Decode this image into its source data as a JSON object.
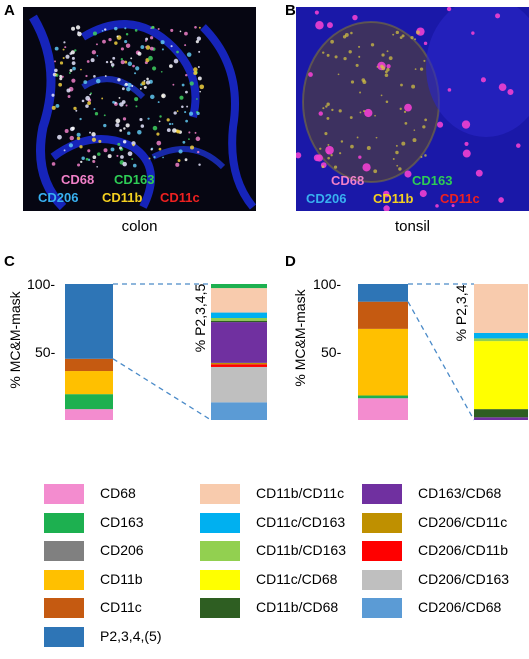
{
  "panels": {
    "A": {
      "letter": "A",
      "tissue": "colon",
      "markers": [
        {
          "text": "CD68",
          "color": "#f080c8"
        },
        {
          "text": "CD163",
          "color": "#2ecc55"
        },
        {
          "text": "CD206",
          "color": "#38b0f0"
        },
        {
          "text": "CD11b",
          "color": "#f4d020"
        },
        {
          "text": "CD11c",
          "color": "#ee2020"
        }
      ]
    },
    "B": {
      "letter": "B",
      "tissue": "tonsil",
      "markers": [
        {
          "text": "CD68",
          "color": "#f080c8"
        },
        {
          "text": "CD163",
          "color": "#2ecc55"
        },
        {
          "text": "CD206",
          "color": "#38b0f0"
        },
        {
          "text": "CD11b",
          "color": "#f4d020"
        },
        {
          "text": "CD11c",
          "color": "#ee2020"
        }
      ]
    },
    "C": {
      "letter": "C"
    },
    "D": {
      "letter": "D"
    }
  },
  "chart_data": [
    {
      "type": "bar",
      "panel": "C",
      "ylabel": "% MC&M-mask",
      "yticks": [
        "100-",
        "50-"
      ],
      "ylim": [
        0,
        100
      ],
      "stack_left": [
        {
          "name": "CD68",
          "value": 8
        },
        {
          "name": "CD163",
          "value": 11
        },
        {
          "name": "CD206",
          "value": 0
        },
        {
          "name": "CD11b",
          "value": 17
        },
        {
          "name": "CD11c",
          "value": 9
        },
        {
          "name": "P2,3,4,(5)",
          "value": 55
        }
      ],
      "stack_right_label": "% P2,3,4,5",
      "stack_right": [
        {
          "name": "CD206/CD68",
          "value": 13
        },
        {
          "name": "CD206/CD163",
          "value": 26
        },
        {
          "name": "CD206/CD11b",
          "value": 2
        },
        {
          "name": "CD206/CD11c",
          "value": 1
        },
        {
          "name": "CD163/CD68",
          "value": 30
        },
        {
          "name": "CD11b/CD68",
          "value": 1
        },
        {
          "name": "CD11c/CD68",
          "value": 0
        },
        {
          "name": "CD11b/CD163",
          "value": 2
        },
        {
          "name": "CD11c/CD163",
          "value": 4
        },
        {
          "name": "CD11b/CD11c",
          "value": 18
        },
        {
          "name": "CD163 top",
          "value": 3
        }
      ]
    },
    {
      "type": "bar",
      "panel": "D",
      "ylabel": "% MC&M-mask",
      "yticks": [
        "100-",
        "50-"
      ],
      "ylim": [
        0,
        100
      ],
      "stack_left": [
        {
          "name": "CD68",
          "value": 16
        },
        {
          "name": "CD163",
          "value": 2
        },
        {
          "name": "CD206",
          "value": 0
        },
        {
          "name": "CD11b",
          "value": 49
        },
        {
          "name": "CD11c",
          "value": 20
        },
        {
          "name": "P2,3,4,(5)",
          "value": 13
        }
      ],
      "stack_right_label": "% P2,3,4",
      "stack_right": [
        {
          "name": "CD163/CD68",
          "value": 2
        },
        {
          "name": "CD11b/CD68",
          "value": 6
        },
        {
          "name": "CD11c/CD68",
          "value": 50
        },
        {
          "name": "CD11b/CD163",
          "value": 2
        },
        {
          "name": "CD11c/CD163",
          "value": 4
        },
        {
          "name": "CD11b/CD11c",
          "value": 36
        }
      ]
    }
  ],
  "legend": [
    {
      "label": "CD68",
      "color": "#f38ccf"
    },
    {
      "label": "CD163",
      "color": "#1db050"
    },
    {
      "label": "CD206",
      "color": "#808080"
    },
    {
      "label": "CD11b",
      "color": "#ffc000"
    },
    {
      "label": "CD11c",
      "color": "#c55a11"
    },
    {
      "label": "P2,3,4,(5)",
      "color": "#2e75b6"
    },
    {
      "label": "CD11b/CD11c",
      "color": "#f8cbad"
    },
    {
      "label": "CD11c/CD163",
      "color": "#00b0f0"
    },
    {
      "label": "CD11b/CD163",
      "color": "#92d050"
    },
    {
      "label": "CD11c/CD68",
      "color": "#ffff00"
    },
    {
      "label": "CD11b/CD68",
      "color": "#2e5e22"
    },
    {
      "label": "CD163/CD68",
      "color": "#7030a0"
    },
    {
      "label": "CD206/CD11c",
      "color": "#bf9000"
    },
    {
      "label": "CD206/CD11b",
      "color": "#ff0000"
    },
    {
      "label": "CD206/CD163",
      "color": "#bfbfbf"
    },
    {
      "label": "CD206/CD68",
      "color": "#5b9bd5"
    }
  ]
}
